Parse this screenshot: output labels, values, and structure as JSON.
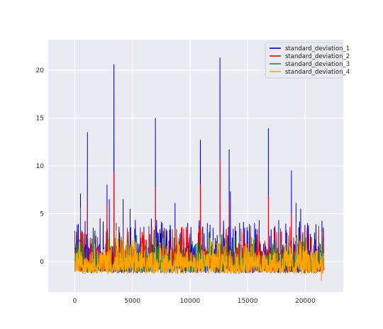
{
  "chart_data": {
    "type": "line",
    "title": "",
    "xlabel": "",
    "ylabel": "",
    "xlim": [
      -2300,
      23300
    ],
    "ylim": [
      -3.2,
      23.2
    ],
    "xticks": [
      0,
      5000,
      10000,
      15000,
      20000
    ],
    "yticks": [
      0,
      5,
      10,
      15,
      20
    ],
    "xtick_labels": [
      "0",
      "5000",
      "10000",
      "15000",
      "20000"
    ],
    "ytick_labels": [
      "0",
      "5",
      "10",
      "15",
      "20"
    ],
    "grid": true,
    "legend_position": "top-right",
    "x_range": [
      0,
      21600
    ],
    "series": [
      {
        "name": "standard_deviation_1",
        "color": "#0000cc",
        "spikes": [
          {
            "x": 300,
            "y": 2.2
          },
          {
            "x": 500,
            "y": 7.1
          },
          {
            "x": 900,
            "y": 4.2
          },
          {
            "x": 1100,
            "y": 13.5
          },
          {
            "x": 1600,
            "y": 3.5
          },
          {
            "x": 2200,
            "y": 4.5
          },
          {
            "x": 2800,
            "y": 8.0
          },
          {
            "x": 3000,
            "y": 6.5
          },
          {
            "x": 3400,
            "y": 20.6
          },
          {
            "x": 3600,
            "y": 4.0
          },
          {
            "x": 4200,
            "y": 6.5
          },
          {
            "x": 4800,
            "y": 5.5
          },
          {
            "x": 5200,
            "y": 3.4
          },
          {
            "x": 6000,
            "y": 3.6
          },
          {
            "x": 7000,
            "y": 15.0
          },
          {
            "x": 7600,
            "y": 4.0
          },
          {
            "x": 8000,
            "y": 3.2
          },
          {
            "x": 8700,
            "y": 6.1
          },
          {
            "x": 9200,
            "y": 3.0
          },
          {
            "x": 9800,
            "y": 4.0
          },
          {
            "x": 10900,
            "y": 12.7
          },
          {
            "x": 11500,
            "y": 4.0
          },
          {
            "x": 12000,
            "y": 3.5
          },
          {
            "x": 12600,
            "y": 21.3
          },
          {
            "x": 13400,
            "y": 11.7
          },
          {
            "x": 13500,
            "y": 7.3
          },
          {
            "x": 14300,
            "y": 4.0
          },
          {
            "x": 15000,
            "y": 3.2
          },
          {
            "x": 15600,
            "y": 4.0
          },
          {
            "x": 16000,
            "y": 4.3
          },
          {
            "x": 16800,
            "y": 13.9
          },
          {
            "x": 17300,
            "y": 3.5
          },
          {
            "x": 17700,
            "y": 4.3
          },
          {
            "x": 18400,
            "y": 3.0
          },
          {
            "x": 18800,
            "y": 9.5
          },
          {
            "x": 19200,
            "y": 6.1
          },
          {
            "x": 19600,
            "y": 5.5
          },
          {
            "x": 20200,
            "y": 4.0
          },
          {
            "x": 20800,
            "y": 3.0
          },
          {
            "x": 21300,
            "y": 1.8
          }
        ]
      },
      {
        "name": "standard_deviation_2",
        "color": "#ff0000",
        "spikes": [
          {
            "x": 500,
            "y": 5.6
          },
          {
            "x": 1100,
            "y": 7.0
          },
          {
            "x": 2800,
            "y": 5.9
          },
          {
            "x": 3400,
            "y": 9.3
          },
          {
            "x": 4200,
            "y": 4.0
          },
          {
            "x": 7000,
            "y": 7.7
          },
          {
            "x": 8700,
            "y": 3.0
          },
          {
            "x": 10900,
            "y": 8.0
          },
          {
            "x": 12600,
            "y": 10.7
          },
          {
            "x": 13400,
            "y": 6.5
          },
          {
            "x": 16800,
            "y": 6.8
          },
          {
            "x": 18800,
            "y": 5.0
          },
          {
            "x": 19200,
            "y": 4.0
          },
          {
            "x": 19600,
            "y": 3.5
          }
        ]
      },
      {
        "name": "standard_deviation_3",
        "color": "#2e7d46",
        "spikes": [
          {
            "x": 3600,
            "y": 4.0
          },
          {
            "x": 8700,
            "y": 3.5
          },
          {
            "x": 12600,
            "y": 3.0
          }
        ]
      },
      {
        "name": "standard_deviation_4",
        "color": "#ffa500",
        "spikes": [
          {
            "x": 3600,
            "y": 3.2
          },
          {
            "x": 7000,
            "y": 1.5
          },
          {
            "x": 12600,
            "y": 2.5
          },
          {
            "x": 21400,
            "y": -2.0
          }
        ]
      }
    ]
  }
}
